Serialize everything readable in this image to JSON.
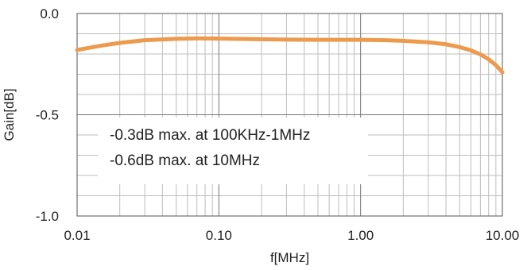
{
  "chart_data": {
    "type": "line",
    "xscale": "log",
    "xlim": [
      0.01,
      10.0
    ],
    "ylim": [
      -1.0,
      0.0
    ],
    "xlabel": "f[MHz]",
    "ylabel": "Gain[dB]",
    "x_tick_labels": [
      "0.01",
      "0.10",
      "1.00",
      "10.00"
    ],
    "x_ticks": [
      0.01,
      0.1,
      1.0,
      10.0
    ],
    "y_tick_labels": [
      "0.0",
      "-0.5",
      "-1.0"
    ],
    "y_ticks": [
      0.0,
      -0.5,
      -1.0
    ],
    "grid": true,
    "series": [
      {
        "color": "#ED9A4D",
        "x": [
          0.01,
          0.015,
          0.02,
          0.03,
          0.05,
          0.07,
          0.1,
          0.2,
          0.3,
          0.5,
          0.7,
          1.0,
          1.5,
          2.0,
          3.0,
          4.0,
          5.0,
          6.0,
          7.0,
          8.0,
          9.0,
          10.0
        ],
        "y": [
          -0.18,
          -0.158,
          -0.145,
          -0.132,
          -0.125,
          -0.123,
          -0.124,
          -0.127,
          -0.129,
          -0.13,
          -0.13,
          -0.13,
          -0.132,
          -0.135,
          -0.142,
          -0.152,
          -0.166,
          -0.182,
          -0.202,
          -0.226,
          -0.255,
          -0.29
        ]
      }
    ],
    "annotations": [
      "-0.3dB max. at 100KHz-1MHz",
      "-0.6dB max. at 10MHz"
    ]
  }
}
